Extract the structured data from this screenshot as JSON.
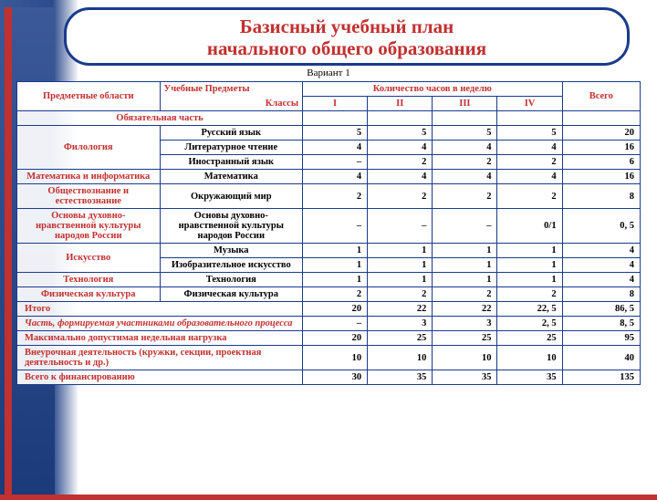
{
  "header": {
    "title_line1": "Базисный учебный план",
    "title_line2": "начального общего образования",
    "variant": "Вариант 1"
  },
  "table": {
    "head": {
      "col_areas": "Предметные области",
      "col_subjects": "Учебные Предметы",
      "col_classes": "Классы",
      "col_hours": "Количество часов в неделю",
      "col_total": "Всего",
      "grades": [
        "I",
        "II",
        "III",
        "IV"
      ]
    },
    "mandatory_label": "Обязательная часть",
    "groups": [
      {
        "area": "Филология",
        "rows": [
          {
            "subject": "Русский язык",
            "v": [
              "5",
              "5",
              "5",
              "5",
              "20"
            ]
          },
          {
            "subject": "Литературное чтение",
            "v": [
              "4",
              "4",
              "4",
              "4",
              "16"
            ]
          },
          {
            "subject": "Иностранный язык",
            "v": [
              "–",
              "2",
              "2",
              "2",
              "6"
            ]
          }
        ]
      },
      {
        "area": "Математика и информатика",
        "rows": [
          {
            "subject": "Математика",
            "v": [
              "4",
              "4",
              "4",
              "4",
              "16"
            ]
          }
        ]
      },
      {
        "area": "Обществознание и естествознание",
        "rows": [
          {
            "subject": "Окружающий мир",
            "v": [
              "2",
              "2",
              "2",
              "2",
              "8"
            ]
          }
        ]
      },
      {
        "area": "Основы духовно-нравственной культуры народов России",
        "rows": [
          {
            "subject": "Основы духовно-нравственной культуры народов России",
            "v": [
              "–",
              "–",
              "–",
              "0/1",
              "0, 5"
            ]
          }
        ]
      },
      {
        "area": "Искусство",
        "rows": [
          {
            "subject": "Музыка",
            "v": [
              "1",
              "1",
              "1",
              "1",
              "4"
            ]
          },
          {
            "subject": "Изобразительное искусство",
            "v": [
              "1",
              "1",
              "1",
              "1",
              "4"
            ]
          }
        ]
      },
      {
        "area": "Технология",
        "rows": [
          {
            "subject": "Технология",
            "v": [
              "1",
              "1",
              "1",
              "1",
              "4"
            ]
          }
        ]
      },
      {
        "area": "Физическая культура",
        "rows": [
          {
            "subject": "Физическая культура",
            "v": [
              "2",
              "2",
              "2",
              "2",
              "8"
            ]
          }
        ]
      }
    ],
    "footer": [
      {
        "label": "Итого",
        "style": "leftlabel",
        "v": [
          "20",
          "22",
          "22",
          "22, 5",
          "86, 5"
        ]
      },
      {
        "label": "Часть, формируемая участниками образовательного процесса",
        "style": "leftitalic",
        "v": [
          "–",
          "3",
          "3",
          "2, 5",
          "8, 5"
        ]
      },
      {
        "label": "Максимально допустимая недельная нагрузка",
        "style": "leftlabel",
        "v": [
          "20",
          "25",
          "25",
          "25",
          "95"
        ]
      },
      {
        "label": "Внеурочная деятельность (кружки, секции, проектная деятельность и др.)",
        "style": "leftlabel",
        "v": [
          "10",
          "10",
          "10",
          "10",
          "40"
        ]
      },
      {
        "label": "Всего к финансированию",
        "style": "leftlabel",
        "v": [
          "30",
          "35",
          "35",
          "35",
          "135"
        ]
      }
    ]
  },
  "colors": {
    "border": "#1a3a8c",
    "accent": "#c23030",
    "bg_blue": "#3b5998"
  }
}
